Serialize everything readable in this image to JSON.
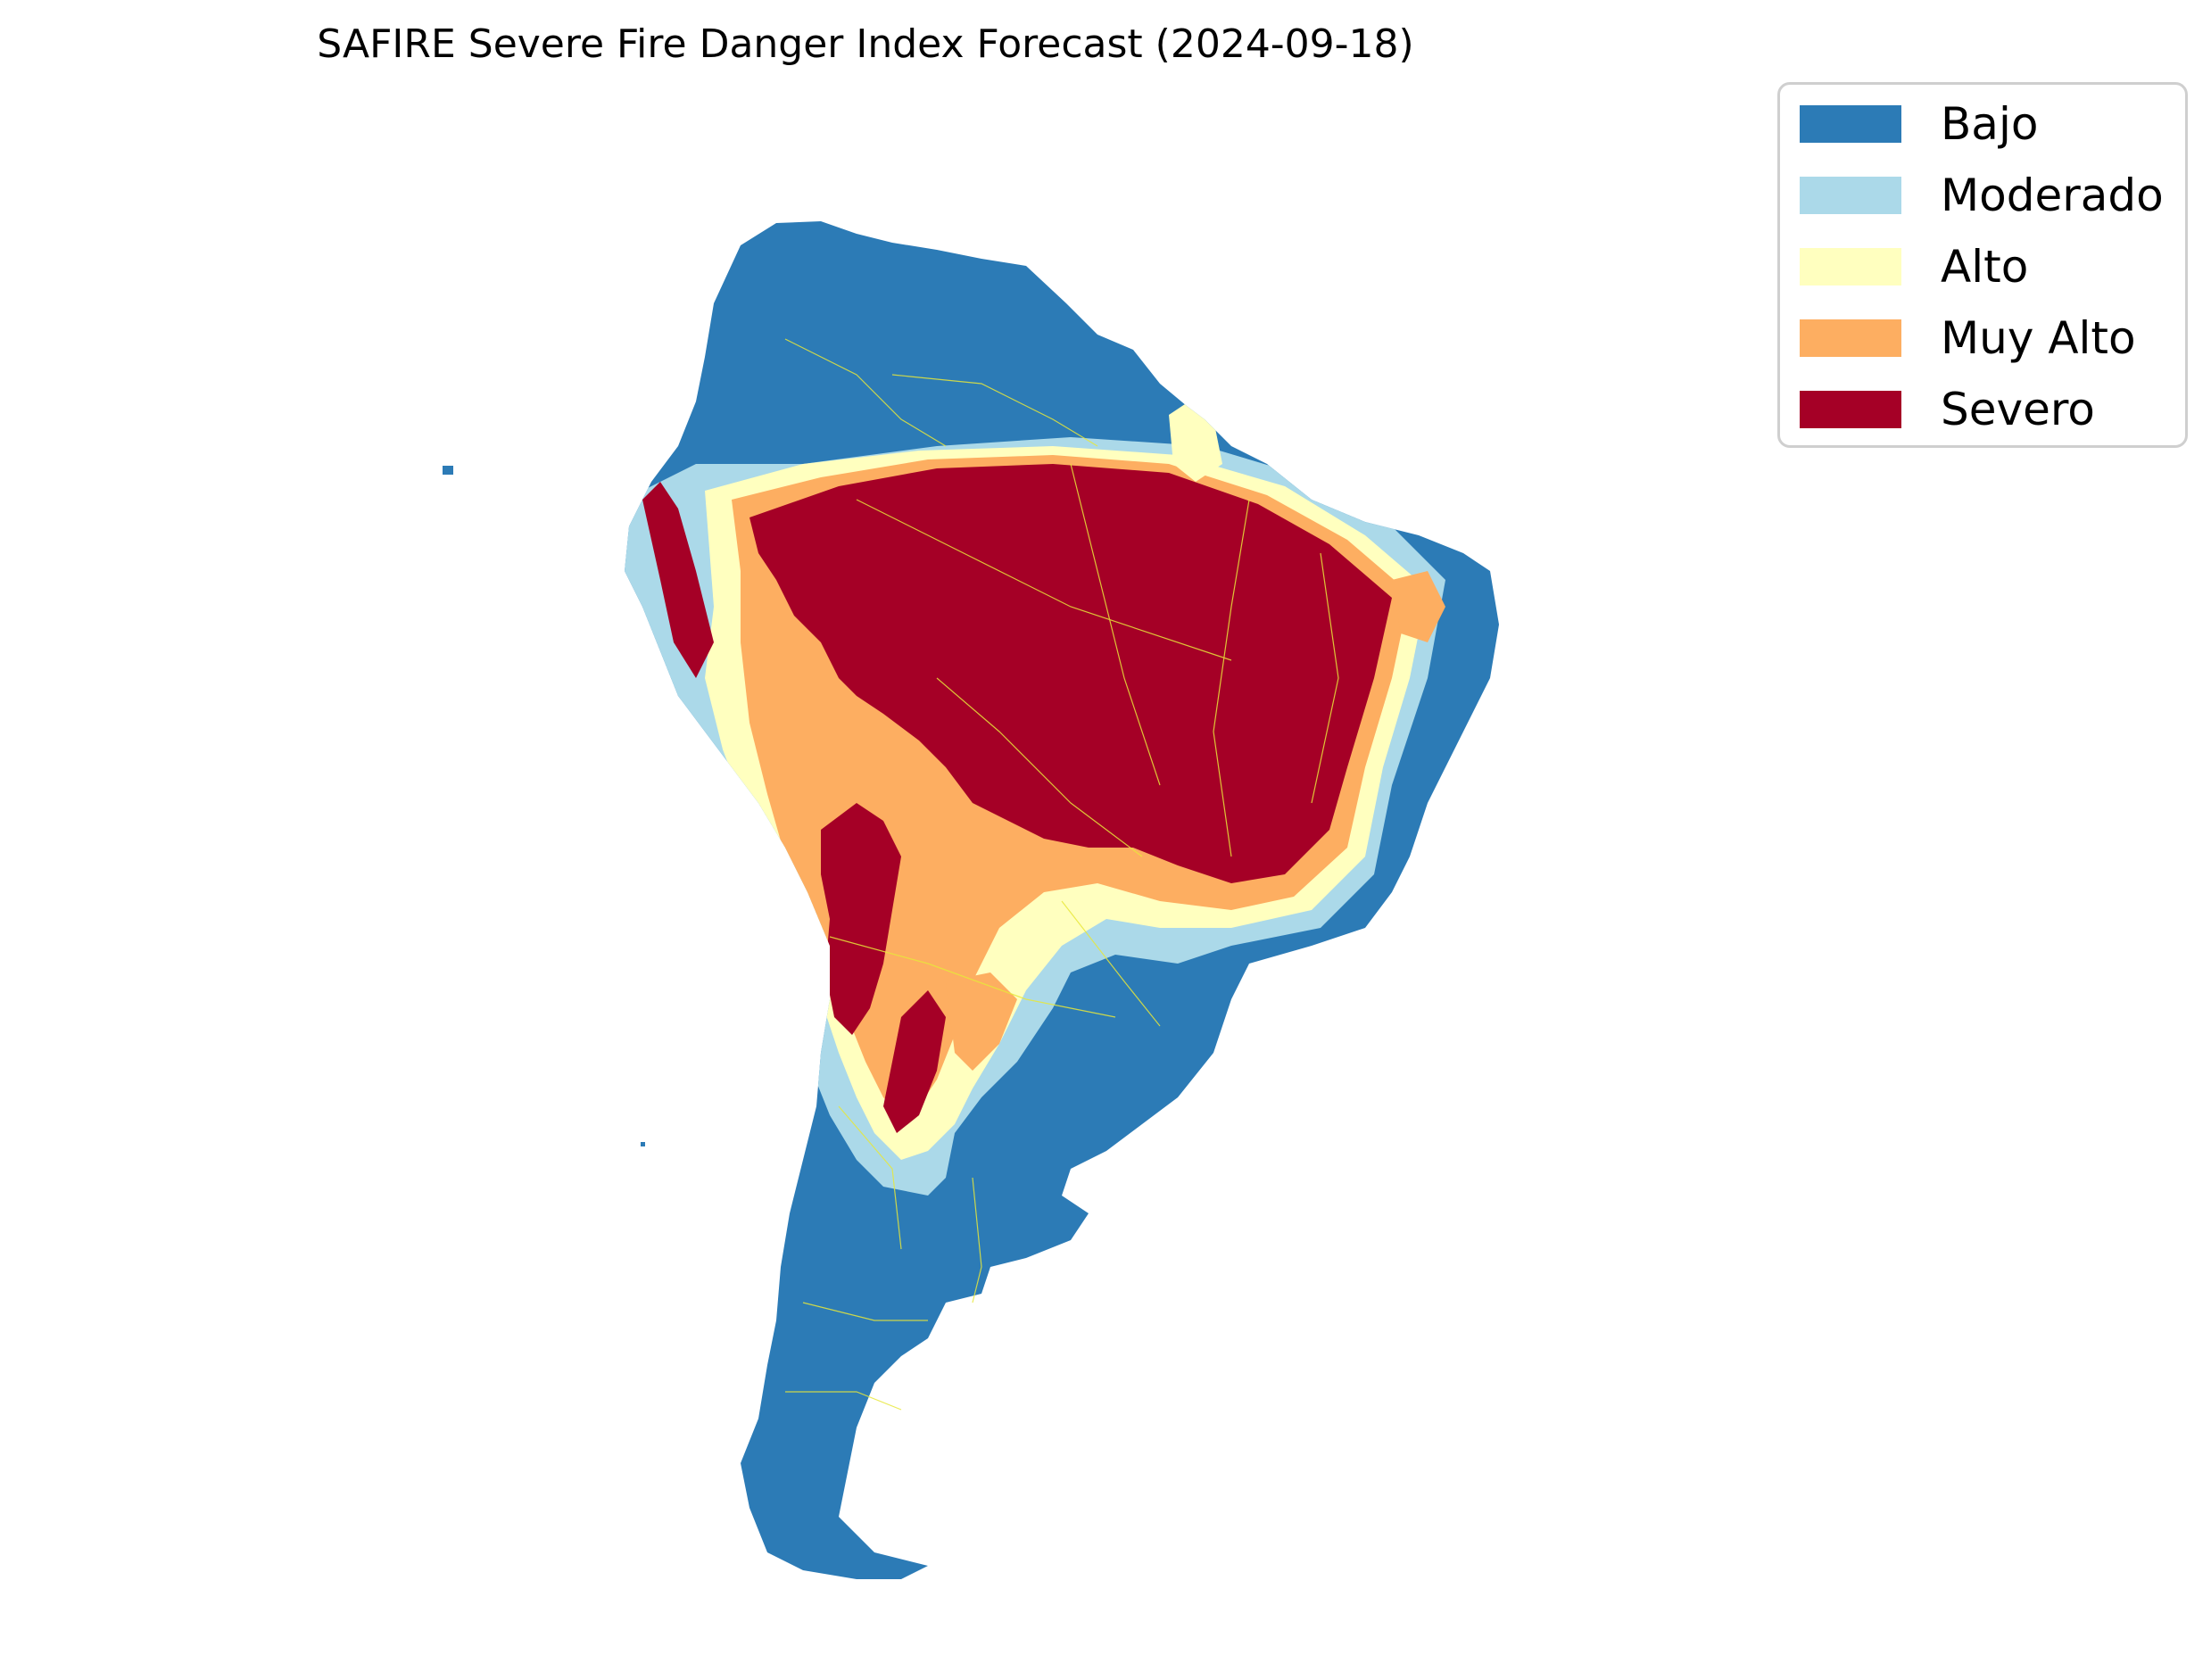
{
  "title": "SAFIRE Severe Fire Danger Index Forecast (2024-09-18)",
  "legend": {
    "items": [
      {
        "label": "Bajo",
        "color": "#2c7bb6"
      },
      {
        "label": "Moderado",
        "color": "#abd9e9"
      },
      {
        "label": "Alto",
        "color": "#ffffbf"
      },
      {
        "label": "Muy Alto",
        "color": "#fdae61"
      },
      {
        "label": "Severo",
        "color": "#a50026"
      }
    ]
  },
  "colors": {
    "border": "#e8e83a"
  }
}
